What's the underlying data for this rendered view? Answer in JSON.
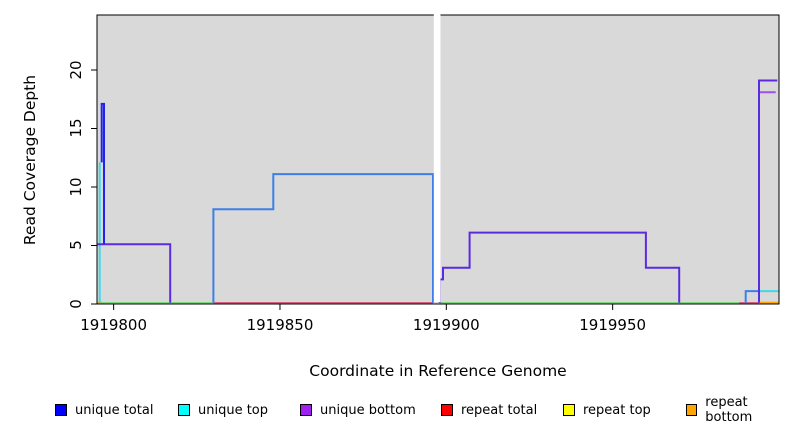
{
  "chart_data": {
    "type": "line",
    "subtype": "step-coverage",
    "title": "",
    "xlabel": "Coordinate in Reference Genome",
    "ylabel": "Read Coverage Depth",
    "xlim": [
      1919795,
      1920000
    ],
    "ylim": [
      0,
      24.7
    ],
    "x_ticks": [
      1919800,
      1919850,
      1919900,
      1919950
    ],
    "y_ticks": [
      0,
      5,
      10,
      15,
      20
    ],
    "grid": false,
    "plot_background": "#d9d9d9",
    "gap_region": {
      "from": 1919896,
      "to": 1919898,
      "color": "#ffffff"
    },
    "series": [
      {
        "name": "unique total",
        "color": "#0000FF",
        "step_points": [
          [
            1919795,
            5
          ],
          [
            1919796,
            17
          ],
          [
            1919797,
            5
          ],
          [
            1919817,
            0
          ],
          [
            1919830,
            8
          ],
          [
            1919848,
            11
          ],
          [
            1919896,
            0
          ],
          [
            1919898,
            2
          ],
          [
            1919899,
            3
          ],
          [
            1919907,
            6
          ],
          [
            1919960,
            3
          ],
          [
            1919970,
            0
          ],
          [
            1919990,
            1
          ],
          [
            1919994,
            19
          ],
          [
            1920000,
            19
          ]
        ]
      },
      {
        "name": "unique top",
        "color": "#00FFFF",
        "step_points": [
          [
            1919795,
            12
          ],
          [
            1919797,
            0
          ],
          [
            1919830,
            8
          ],
          [
            1919848,
            11
          ],
          [
            1919896,
            0
          ],
          [
            1919994,
            1
          ],
          [
            1920000,
            1
          ]
        ]
      },
      {
        "name": "unique bottom",
        "color": "#A020F0",
        "step_points": [
          [
            1919795,
            5
          ],
          [
            1919817,
            0
          ],
          [
            1919898,
            2
          ],
          [
            1919899,
            3
          ],
          [
            1919907,
            6
          ],
          [
            1919960,
            3
          ],
          [
            1919970,
            0
          ],
          [
            1919994,
            18
          ],
          [
            1920000,
            18
          ]
        ]
      },
      {
        "name": "repeat total",
        "color": "#FF0000",
        "step_points": [
          [
            1919795,
            0
          ],
          [
            1920000,
            0
          ]
        ]
      },
      {
        "name": "repeat top",
        "color": "#FFFF00",
        "step_points": [
          [
            1919795,
            0
          ],
          [
            1920000,
            0
          ]
        ]
      },
      {
        "name": "repeat bottom",
        "color": "#FFA500",
        "step_points": [
          [
            1919795,
            0
          ],
          [
            1920000,
            0
          ]
        ]
      }
    ],
    "rendered_lines": [
      {
        "name": "baseline-green-left",
        "color": "#7fd87f",
        "width": 1.6,
        "points": [
          [
            1919795,
            0
          ],
          [
            1919830,
            0
          ]
        ]
      },
      {
        "name": "baseline-red-mid",
        "color": "#d95f7f",
        "width": 1.6,
        "points": [
          [
            1919830,
            0
          ],
          [
            1919896,
            0
          ]
        ]
      },
      {
        "name": "baseline-green-right",
        "color": "#7fd87f",
        "width": 1.6,
        "points": [
          [
            1919898,
            0
          ],
          [
            1919988,
            0
          ]
        ]
      },
      {
        "name": "baseline-red-right",
        "color": "#d95f7f",
        "width": 1.6,
        "points": [
          [
            1919988,
            0
          ],
          [
            1919994,
            0
          ]
        ]
      },
      {
        "name": "baseline-orange-left",
        "color": "#ffa500",
        "width": 2,
        "points": [
          [
            1919795,
            0
          ],
          [
            1919796.5,
            0
          ]
        ]
      },
      {
        "name": "baseline-orange-right",
        "color": "#ffa500",
        "width": 2,
        "points": [
          [
            1919994,
            0
          ],
          [
            1920000,
            0
          ]
        ]
      },
      {
        "name": "unique-top-left-spike",
        "color": "#3fd9e6",
        "width": 2,
        "points": [
          [
            1919795.8,
            0
          ],
          [
            1919795.8,
            12
          ]
        ]
      },
      {
        "name": "unique-bottom-left",
        "color": "#5b2be0",
        "width": 2,
        "points": [
          [
            1919795,
            5
          ],
          [
            1919817,
            5
          ],
          [
            1919817,
            0
          ]
        ]
      },
      {
        "name": "unique-total-left-spike",
        "color": "#2222ee",
        "width": 2,
        "points": [
          [
            1919796.4,
            12
          ],
          [
            1919796.4,
            17
          ],
          [
            1919797.1,
            17
          ],
          [
            1919797.1,
            5
          ]
        ]
      },
      {
        "name": "unique-total-mid-block",
        "color": "#3d7fe8",
        "width": 2,
        "points": [
          [
            1919830,
            0
          ],
          [
            1919830,
            8
          ],
          [
            1919848,
            8
          ],
          [
            1919848,
            11
          ],
          [
            1919896,
            11
          ],
          [
            1919896,
            0
          ]
        ]
      },
      {
        "name": "unique-bottom-right-steps",
        "color": "#5b2be0",
        "width": 2,
        "points": [
          [
            1919898,
            0
          ],
          [
            1919898,
            2
          ],
          [
            1919899,
            2
          ],
          [
            1919899,
            3
          ],
          [
            1919907,
            3
          ],
          [
            1919907,
            6
          ],
          [
            1919960,
            6
          ],
          [
            1919960,
            3
          ],
          [
            1919970,
            3
          ],
          [
            1919970,
            0
          ]
        ]
      },
      {
        "name": "unique-total-step-one",
        "color": "#3d7fe8",
        "width": 2,
        "points": [
          [
            1919990,
            0
          ],
          [
            1919990,
            1
          ],
          [
            1919994,
            1
          ]
        ]
      },
      {
        "name": "unique-top-right",
        "color": "#3fd9e6",
        "width": 2,
        "points": [
          [
            1919994,
            1
          ],
          [
            1920000,
            1
          ]
        ]
      },
      {
        "name": "unique-bottom-eighteen",
        "color": "#a050e8",
        "width": 2,
        "points": [
          [
            1919994,
            18
          ],
          [
            1919999,
            18
          ]
        ]
      },
      {
        "name": "unique-total-right-spike",
        "color": "#5b2be0",
        "width": 2,
        "points": [
          [
            1919994,
            0
          ],
          [
            1919994,
            19
          ],
          [
            1919999.5,
            19
          ]
        ]
      }
    ],
    "legend": [
      {
        "label": "unique total",
        "color": "#0000FF"
      },
      {
        "label": "unique top",
        "color": "#00FFFF"
      },
      {
        "label": "unique bottom",
        "color": "#A020F0"
      },
      {
        "label": "repeat total",
        "color": "#FF0000"
      },
      {
        "label": "repeat top",
        "color": "#FFFF00"
      },
      {
        "label": "repeat bottom",
        "color": "#FFA500"
      }
    ],
    "legend_position": "bottom"
  }
}
